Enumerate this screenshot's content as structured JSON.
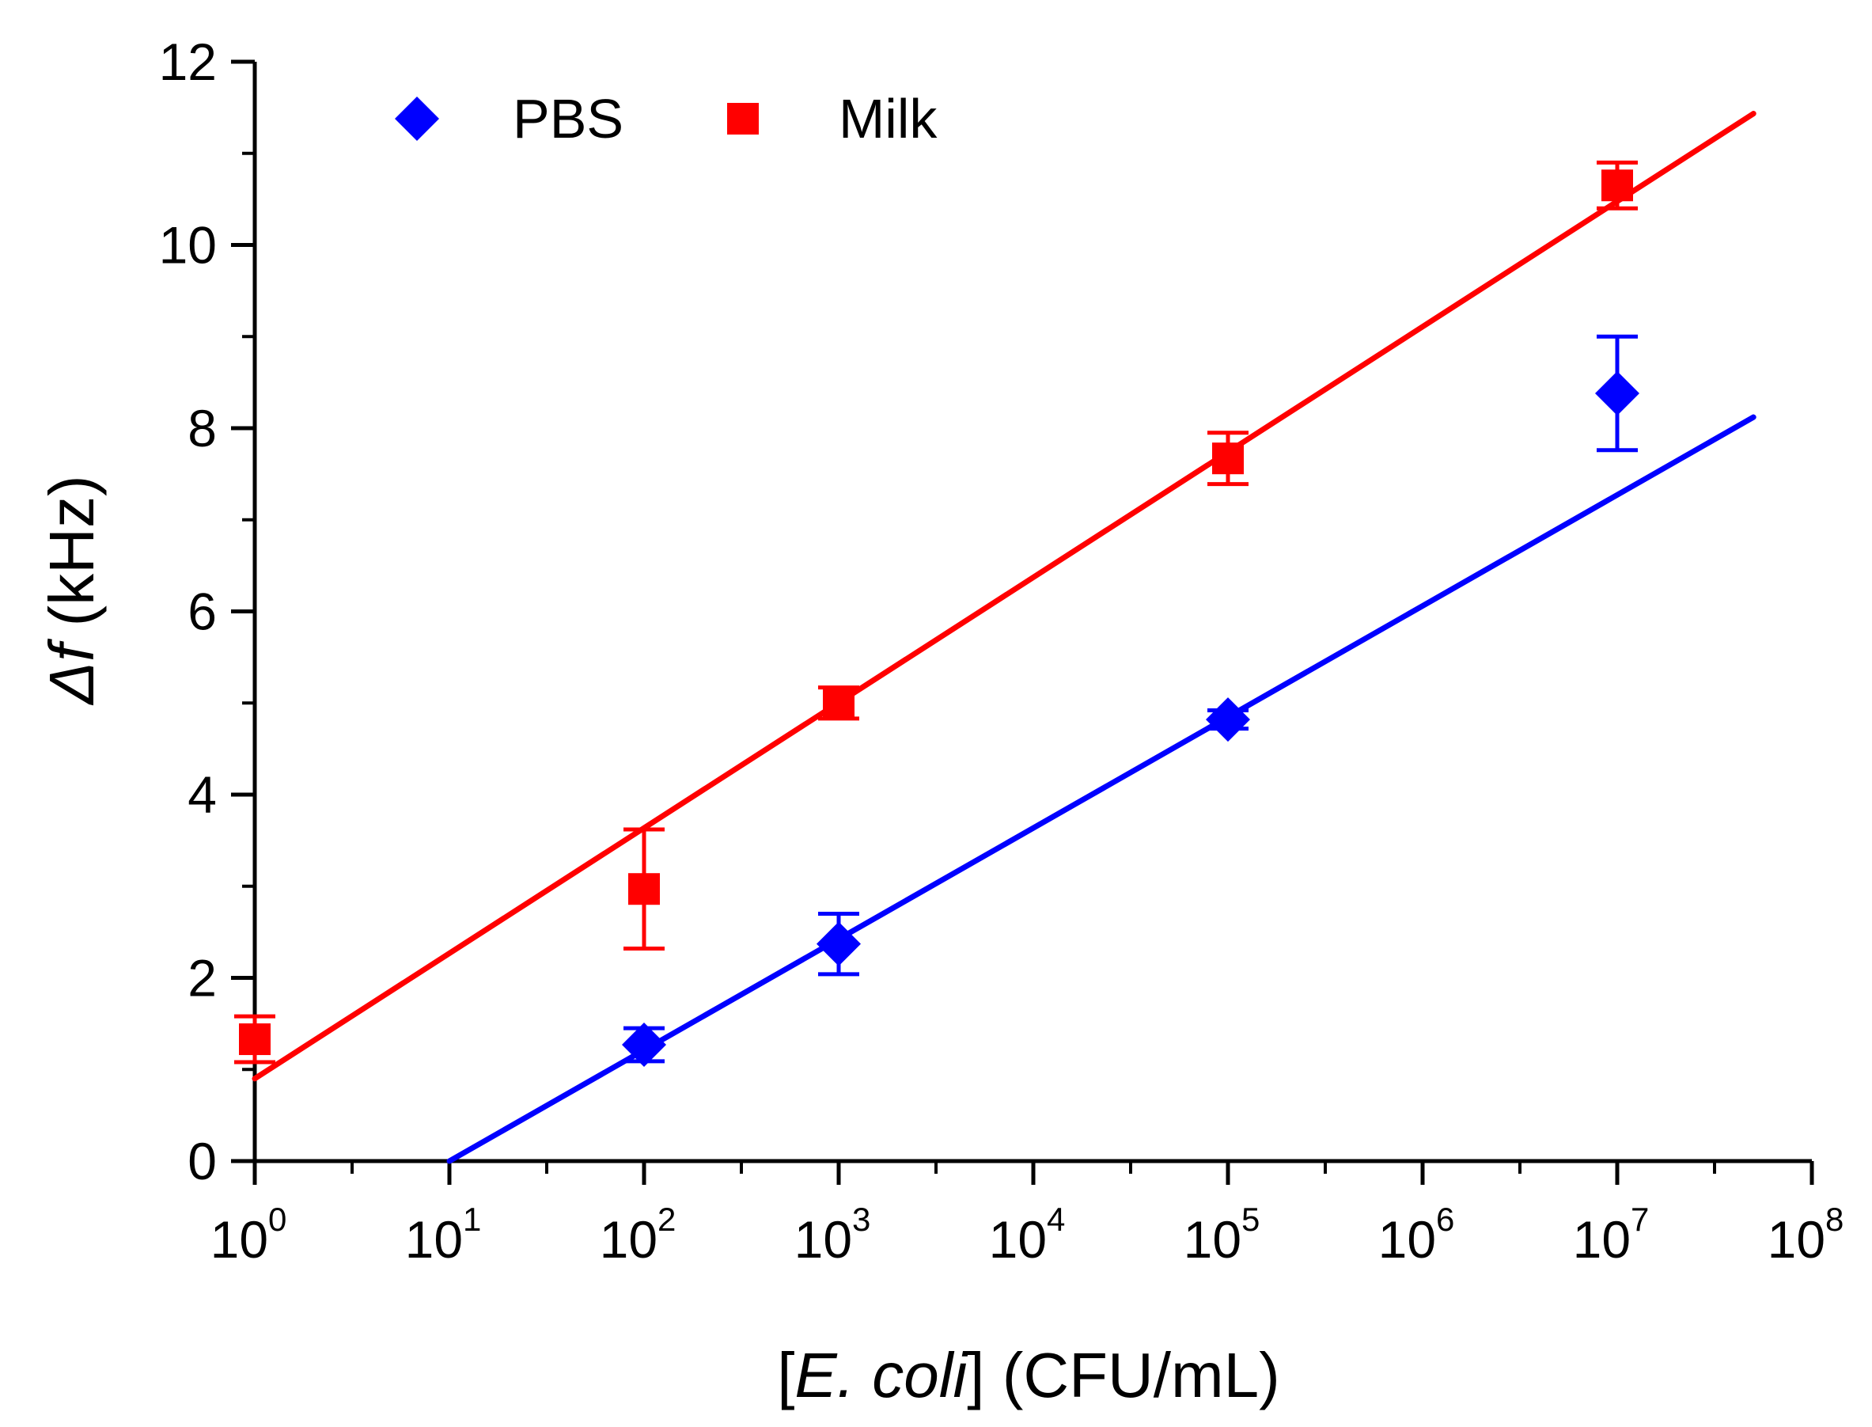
{
  "chart_data": {
    "type": "scatter",
    "title": "",
    "xlabel": {
      "open_bracket": "[",
      "italic": "E. coli",
      "close_bracket": "]",
      "units": " (CFU/mL)"
    },
    "ylabel": {
      "italic": "Δf",
      "units": " (kHz)"
    },
    "x_scale": "log10",
    "xlim_exponent": [
      0,
      8
    ],
    "ylim": [
      0,
      12
    ],
    "x_ticks": [
      {
        "base": "10",
        "exp": "0"
      },
      {
        "base": "10",
        "exp": "1"
      },
      {
        "base": "10",
        "exp": "2"
      },
      {
        "base": "10",
        "exp": "3"
      },
      {
        "base": "10",
        "exp": "4"
      },
      {
        "base": "10",
        "exp": "5"
      },
      {
        "base": "10",
        "exp": "6"
      },
      {
        "base": "10",
        "exp": "7"
      },
      {
        "base": "10",
        "exp": "8"
      }
    ],
    "y_ticks": [
      "0",
      "2",
      "4",
      "6",
      "8",
      "10",
      "12"
    ],
    "y_minor_step": 1,
    "legend_position": "top-left",
    "series": [
      {
        "name": "PBS",
        "color": "#0000ff",
        "marker": "diamond",
        "points": [
          {
            "x_exp": 2,
            "y": 1.27,
            "err": 0.18
          },
          {
            "x_exp": 3,
            "y": 2.37,
            "err": 0.33
          },
          {
            "x_exp": 5,
            "y": 4.82,
            "err": 0.1
          },
          {
            "x_exp": 7,
            "y": 8.38,
            "err": 0.62
          }
        ],
        "fit": {
          "x_exp_start": 1.0,
          "x_exp_end": 7.7,
          "slope": 1.212,
          "intercept": -1.212
        }
      },
      {
        "name": "Milk",
        "color": "#ff0000",
        "marker": "square",
        "points": [
          {
            "x_exp": 0,
            "y": 1.33,
            "err": 0.25
          },
          {
            "x_exp": 2,
            "y": 2.97,
            "err": 0.65
          },
          {
            "x_exp": 3,
            "y": 5.0,
            "err": 0.17
          },
          {
            "x_exp": 5,
            "y": 7.67,
            "err": 0.28
          },
          {
            "x_exp": 7,
            "y": 10.65,
            "err": 0.25
          }
        ],
        "fit": {
          "x_exp_start": 0.0,
          "x_exp_end": 7.7,
          "slope": 1.368,
          "intercept": 0.9
        }
      }
    ]
  }
}
